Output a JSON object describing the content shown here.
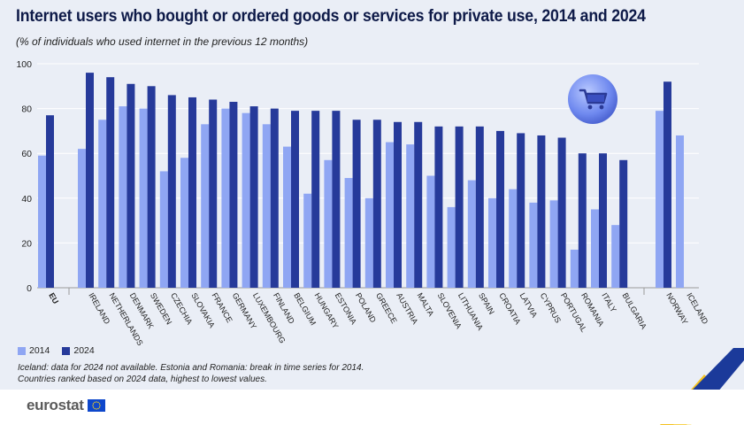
{
  "header": {
    "title": "Internet users who bought or ordered goods or services for private use, 2014 and 2024",
    "subtitle": "(% of individuals who used internet in the previous 12 months)"
  },
  "legend": {
    "items": [
      {
        "label": "2014",
        "color": "#8fa6f3"
      },
      {
        "label": "2024",
        "color": "#263a9a"
      }
    ]
  },
  "notes": {
    "line1": "Iceland: data for 2024 not available. Estonia and Romania: break in time series for 2014.",
    "line2": "Countries ranked based on 2024 data, highest to lowest values."
  },
  "footer": {
    "logo_text": "eurostat"
  },
  "icons": {
    "badge": "shopping-cart-icon"
  },
  "chart_data": {
    "type": "bar",
    "ylim": [
      0,
      100
    ],
    "yticks": [
      0,
      20,
      40,
      60,
      80,
      100
    ],
    "grid": true,
    "legend_placement": "bottom-left",
    "categories": [
      "EU",
      "IRELAND",
      "NETHERLANDS",
      "DENMARK",
      "SWEDEN",
      "CZECHIA",
      "SLOVAKIA",
      "FRANCE",
      "GERMANY",
      "LUXEMBOURG",
      "FINLAND",
      "BELGIUM",
      "HUNGARY",
      "ESTONIA",
      "POLAND",
      "GREECE",
      "AUSTRIA",
      "MALTA",
      "SLOVENIA",
      "LITHUANIA",
      "SPAIN",
      "CROATIA",
      "LATVIA",
      "CYPRUS",
      "PORTUGAL",
      "ROMANIA",
      "ITALY",
      "BULGARIA",
      "NORWAY",
      "ICELAND"
    ],
    "series": [
      {
        "name": "2014",
        "values": [
          59,
          62,
          75,
          81,
          80,
          52,
          58,
          73,
          80,
          78,
          73,
          63,
          42,
          57,
          49,
          40,
          65,
          64,
          50,
          36,
          48,
          40,
          44,
          38,
          39,
          17,
          35,
          28,
          79,
          68
        ]
      },
      {
        "name": "2024",
        "values": [
          77,
          96,
          94,
          91,
          90,
          86,
          85,
          84,
          83,
          81,
          80,
          79,
          79,
          79,
          75,
          75,
          74,
          74,
          72,
          72,
          72,
          70,
          69,
          68,
          67,
          60,
          60,
          57,
          92,
          null
        ]
      }
    ]
  }
}
